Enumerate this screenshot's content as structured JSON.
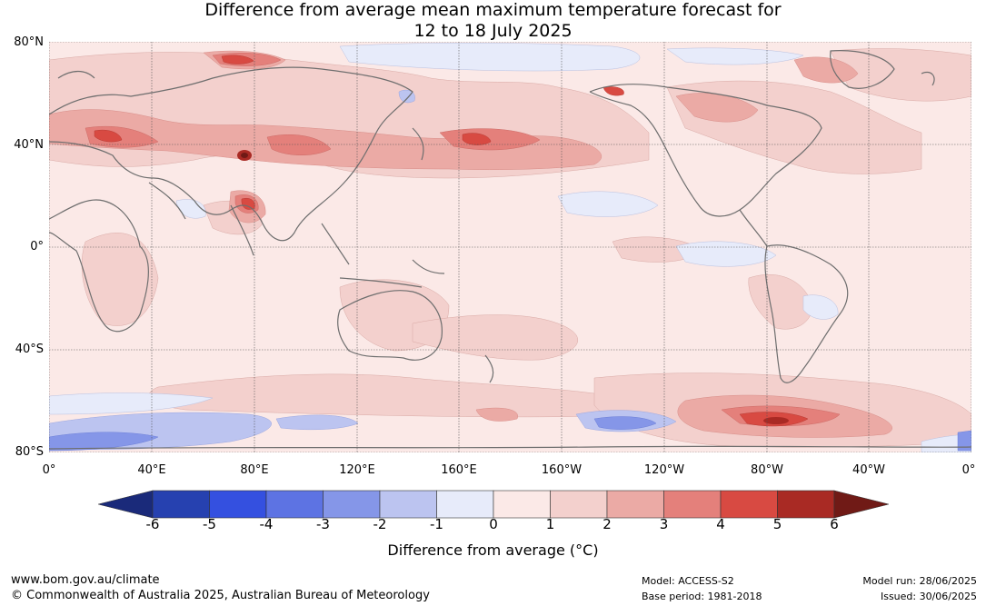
{
  "title": {
    "line1": "Difference from average mean maximum temperature forecast for",
    "line2": "12 to 18 July 2025"
  },
  "lat_labels": [
    "80°N",
    "40°N",
    "0°",
    "40°S",
    "80°S"
  ],
  "lon_labels": [
    "0°",
    "40°E",
    "80°E",
    "120°E",
    "160°E",
    "160°W",
    "120°W",
    "80°W",
    "40°W",
    "0°"
  ],
  "colorbar": {
    "ticks": [
      "-6",
      "-5",
      "-4",
      "-3",
      "-2",
      "-1",
      "0",
      "1",
      "2",
      "3",
      "4",
      "5",
      "6"
    ],
    "colors": [
      "#2641b0",
      "#3450e0",
      "#5d73e3",
      "#8596e8",
      "#bcc4f0",
      "#e7ebfa",
      "#fbe9e7",
      "#f3d0cd",
      "#ebaaa5",
      "#e4807b",
      "#d84a42",
      "#a92a24"
    ],
    "low_extension_color": "#1a2a7a",
    "high_extension_color": "#701a16",
    "title": "Difference from average (°C)"
  },
  "footer": {
    "website": "www.bom.gov.au/climate",
    "copyright": "© Commonwealth of Australia 2025, Australian Bureau of Meteorology",
    "model": "Model: ACCESS-S2",
    "base_period": "Base period: 1981-2018",
    "model_run": "Model run: 28/06/2025",
    "issued": "Issued: 30/06/2025"
  }
}
